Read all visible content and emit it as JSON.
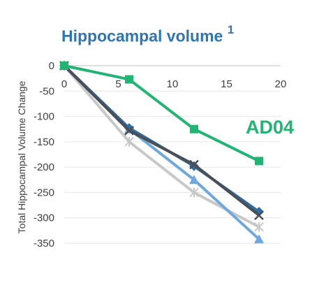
{
  "chart_data": {
    "type": "line",
    "title": "Hippocampal volume",
    "title_superscript": "1",
    "ylabel": "Total Hippocampal Volume Change",
    "xlabel": "",
    "xlim": [
      0,
      20
    ],
    "ylim": [
      -350,
      0
    ],
    "x_ticks": [
      "0",
      "5",
      "10",
      "15",
      "20"
    ],
    "y_ticks": [
      "0",
      "-50",
      "-100",
      "-150",
      "-200",
      "-250",
      "-300",
      "-350"
    ],
    "grid": "horizontal",
    "annotation": "AD04",
    "series": [
      {
        "color": "#c8c8c8",
        "marker": "star",
        "points": [
          [
            0,
            0
          ],
          [
            6,
            -150
          ],
          [
            12,
            -250
          ],
          [
            18,
            -318
          ]
        ]
      },
      {
        "color": "#6fa8dc",
        "marker": "triangle",
        "points": [
          [
            0,
            0
          ],
          [
            6,
            -125
          ],
          [
            12,
            -225
          ],
          [
            18,
            -342
          ]
        ]
      },
      {
        "color": "#2e6da4",
        "marker": "diamond",
        "points": [
          [
            0,
            0
          ],
          [
            6,
            -123
          ],
          [
            12,
            -198
          ],
          [
            18,
            -288
          ]
        ]
      },
      {
        "color": "#4a4f57",
        "marker": "x",
        "points": [
          [
            0,
            0
          ],
          [
            6,
            -128
          ],
          [
            12,
            -195
          ],
          [
            18,
            -295
          ]
        ]
      },
      {
        "color": "#21b573",
        "marker": "square",
        "points": [
          [
            0,
            0
          ],
          [
            6,
            -27
          ],
          [
            12,
            -125
          ],
          [
            18,
            -188
          ]
        ]
      }
    ]
  }
}
